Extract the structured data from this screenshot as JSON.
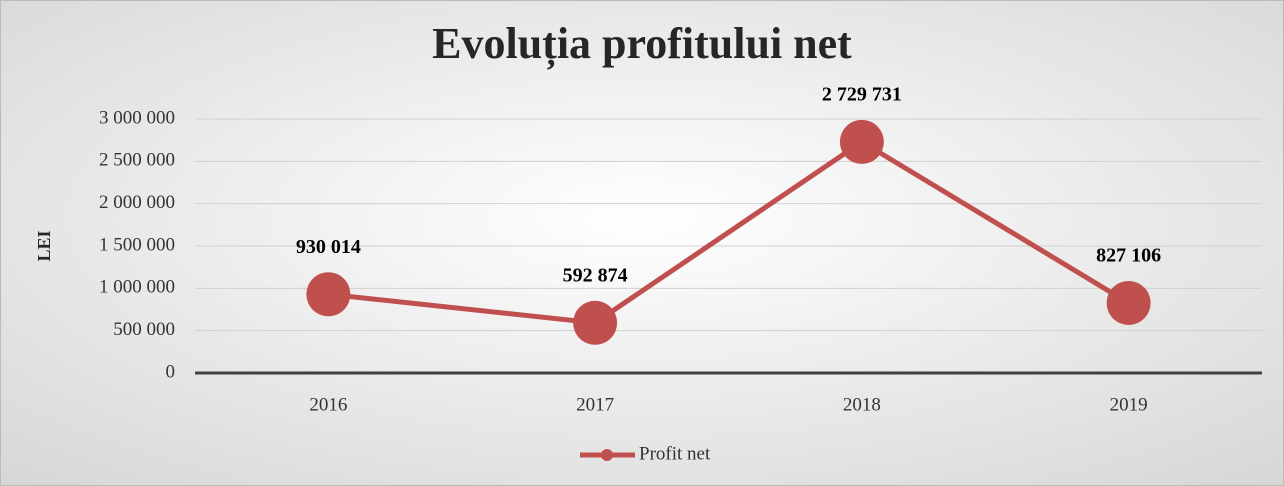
{
  "chart_data": {
    "type": "line",
    "title": "Evoluția profitului net",
    "y_label": "LEI",
    "categories": [
      "2016",
      "2017",
      "2018",
      "2019"
    ],
    "series": [
      {
        "name": "Profit net",
        "color": "#c0504d",
        "values": [
          930014,
          592874,
          2729731,
          827106
        ],
        "value_labels": [
          "930 014",
          "592 874",
          "2 729 731",
          "827 106"
        ]
      }
    ],
    "ylim": [
      0,
      3000000
    ],
    "yticks": [
      0,
      {
        "value": 500000,
        "label": "500 000"
      },
      {
        "value": 1000000,
        "label": "1 000 000"
      },
      {
        "value": 1500000,
        "label": "1 500 000"
      },
      {
        "value": 2000000,
        "label": "2 000 000"
      },
      {
        "value": 2500000,
        "label": "2 500 000"
      },
      {
        "value": 3000000,
        "label": "3 000 000"
      }
    ],
    "grid": true,
    "legend": "bottom"
  }
}
